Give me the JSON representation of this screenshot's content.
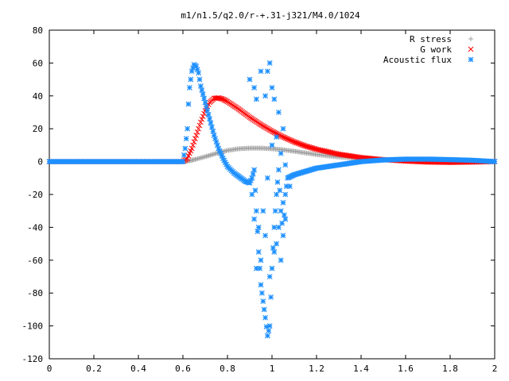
{
  "chart_data": {
    "type": "scatter",
    "title": "m1/n1.5/q2.0/r-+.31-j321/M4.0/1024",
    "xlabel": "",
    "ylabel": "",
    "xlim": [
      0,
      2
    ],
    "ylim": [
      -120,
      80
    ],
    "x_ticks": [
      "0",
      "0.2",
      "0.4",
      "0.6",
      "0.8",
      "1",
      "1.2",
      "1.4",
      "1.6",
      "1.8",
      "2"
    ],
    "y_ticks": [
      "80",
      "60",
      "40",
      "20",
      "0",
      "-20",
      "-40",
      "-60",
      "-80",
      "-100",
      "-120"
    ],
    "x_tick_values": [
      0,
      0.2,
      0.4,
      0.6,
      0.8,
      1.0,
      1.2,
      1.4,
      1.6,
      1.8,
      2.0
    ],
    "y_tick_values": [
      80,
      60,
      40,
      20,
      0,
      -20,
      -40,
      -60,
      -80,
      -100,
      -120
    ],
    "grid": false,
    "legend_position": "top-right",
    "series": [
      {
        "name": "R stress",
        "marker": "plus",
        "color": "#a0a0a0",
        "points": [
          [
            0,
            0
          ],
          [
            0.2,
            0
          ],
          [
            0.4,
            0
          ],
          [
            0.6,
            0
          ],
          [
            0.63,
            0.5
          ],
          [
            0.66,
            1.5
          ],
          [
            0.7,
            3
          ],
          [
            0.75,
            5
          ],
          [
            0.8,
            6.8
          ],
          [
            0.85,
            7.8
          ],
          [
            0.9,
            8.2
          ],
          [
            0.95,
            8.2
          ],
          [
            1.0,
            7.8
          ],
          [
            1.05,
            7.2
          ],
          [
            1.1,
            6.3
          ],
          [
            1.15,
            5.3
          ],
          [
            1.2,
            4.3
          ],
          [
            1.3,
            2.8
          ],
          [
            1.4,
            1.8
          ],
          [
            1.5,
            1.2
          ],
          [
            1.6,
            0.8
          ],
          [
            1.7,
            0.5
          ],
          [
            1.8,
            0.3
          ],
          [
            1.9,
            0.1
          ],
          [
            2.0,
            0
          ]
        ]
      },
      {
        "name": "G work",
        "marker": "cross",
        "color": "#ff0000",
        "points": [
          [
            0,
            0
          ],
          [
            0.2,
            0
          ],
          [
            0.4,
            0
          ],
          [
            0.6,
            0
          ],
          [
            0.62,
            2
          ],
          [
            0.64,
            8
          ],
          [
            0.66,
            16
          ],
          [
            0.68,
            24
          ],
          [
            0.7,
            31
          ],
          [
            0.72,
            36
          ],
          [
            0.74,
            38.5
          ],
          [
            0.76,
            38.8
          ],
          [
            0.78,
            38
          ],
          [
            0.8,
            36.5
          ],
          [
            0.85,
            32
          ],
          [
            0.9,
            27
          ],
          [
            0.95,
            22.5
          ],
          [
            1.0,
            18.5
          ],
          [
            1.05,
            15
          ],
          [
            1.1,
            12
          ],
          [
            1.15,
            9.5
          ],
          [
            1.2,
            7.5
          ],
          [
            1.3,
            4.5
          ],
          [
            1.4,
            2.5
          ],
          [
            1.5,
            1.2
          ],
          [
            1.6,
            0.3
          ],
          [
            1.7,
            -0.3
          ],
          [
            1.8,
            -0.5
          ],
          [
            1.9,
            -0.3
          ],
          [
            2.0,
            0
          ]
        ]
      },
      {
        "name": "Acoustic flux",
        "marker": "star",
        "color": "#1e90ff",
        "points": [
          [
            0,
            0
          ],
          [
            0.2,
            0
          ],
          [
            0.4,
            0
          ],
          [
            0.6,
            0
          ],
          [
            0.61,
            8
          ],
          [
            0.62,
            20
          ],
          [
            0.625,
            35
          ],
          [
            0.63,
            45
          ],
          [
            0.64,
            55
          ],
          [
            0.65,
            59
          ],
          [
            0.66,
            58
          ],
          [
            0.67,
            54
          ],
          [
            0.68,
            46
          ],
          [
            0.7,
            36
          ],
          [
            0.72,
            26
          ],
          [
            0.74,
            16
          ],
          [
            0.76,
            8
          ],
          [
            0.78,
            2
          ],
          [
            0.8,
            -3
          ],
          [
            0.83,
            -7
          ],
          [
            0.86,
            -10
          ],
          [
            0.88,
            -12
          ],
          [
            0.9,
            -13
          ],
          [
            0.91,
            -10
          ],
          [
            0.92,
            -5
          ],
          [
            0.93,
            -30
          ],
          [
            0.94,
            -55
          ],
          [
            0.95,
            -75
          ],
          [
            0.96,
            -85
          ],
          [
            0.97,
            -95
          ],
          [
            0.98,
            -106
          ],
          [
            0.99,
            -100
          ],
          [
            1.0,
            -65
          ],
          [
            1.01,
            -40
          ],
          [
            1.02,
            -20
          ],
          [
            1.03,
            -5
          ],
          [
            1.04,
            -30
          ],
          [
            1.05,
            -45
          ],
          [
            1.06,
            -20
          ],
          [
            1.07,
            -10
          ],
          [
            1.1,
            -8
          ],
          [
            1.15,
            -6
          ],
          [
            1.2,
            -4
          ],
          [
            1.3,
            -2
          ],
          [
            1.4,
            0
          ],
          [
            1.5,
            1
          ],
          [
            1.6,
            1.5
          ],
          [
            1.7,
            1.5
          ],
          [
            1.8,
            1.2
          ],
          [
            1.9,
            0.8
          ],
          [
            2.0,
            0
          ]
        ],
        "scatter_points": [
          [
            0.9,
            50
          ],
          [
            0.92,
            45
          ],
          [
            0.93,
            38
          ],
          [
            0.95,
            55
          ],
          [
            0.97,
            40
          ],
          [
            0.98,
            55
          ],
          [
            0.99,
            60
          ],
          [
            1.0,
            45
          ],
          [
            1.01,
            38
          ],
          [
            1.03,
            30
          ],
          [
            1.05,
            20
          ],
          [
            1.02,
            -50
          ],
          [
            1.04,
            -60
          ],
          [
            1.06,
            -35
          ],
          [
            1.08,
            -15
          ],
          [
            0.93,
            -65
          ],
          [
            0.95,
            -60
          ],
          [
            0.97,
            -45
          ],
          [
            0.99,
            -70
          ],
          [
            1.01,
            -55
          ],
          [
            1.03,
            -40
          ],
          [
            1.05,
            -25
          ],
          [
            0.91,
            -20
          ],
          [
            0.92,
            -35
          ],
          [
            0.94,
            -40
          ],
          [
            0.96,
            -30
          ],
          [
            0.98,
            -10
          ],
          [
            1.0,
            10
          ],
          [
            1.02,
            15
          ],
          [
            1.04,
            5
          ],
          [
            1.06,
            -2
          ]
        ]
      }
    ]
  }
}
